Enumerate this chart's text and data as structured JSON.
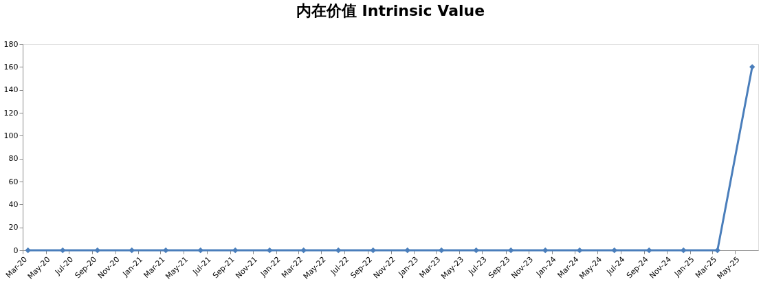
{
  "chart_data": {
    "type": "line",
    "title": "内在价值 Intrinsic Value",
    "x": [
      "2020-03-15",
      "2020-06-15",
      "2020-09-15",
      "2020-12-15",
      "2021-03-15",
      "2021-06-15",
      "2021-09-15",
      "2021-12-15",
      "2022-03-15",
      "2022-06-15",
      "2022-09-15",
      "2022-12-15",
      "2023-03-15",
      "2023-06-15",
      "2023-09-15",
      "2023-12-15",
      "2024-03-15",
      "2024-06-15",
      "2024-09-15",
      "2024-12-15",
      "2025-03-15",
      "2025-06-15"
    ],
    "series": [
      {
        "color": "#4a7ebb",
        "values": [
          0,
          0,
          0,
          0,
          0,
          0,
          0,
          0,
          0,
          0,
          0,
          0,
          0,
          0,
          0,
          0,
          0,
          0,
          0,
          0,
          0,
          160
        ]
      }
    ],
    "xlim": [
      "2020-03-01",
      "2025-07-01"
    ],
    "xticks": [
      {
        "value": "2020-03-01",
        "label": "Mar-20"
      },
      {
        "value": "2020-05-01",
        "label": "May-20"
      },
      {
        "value": "2020-07-01",
        "label": "Jul-20"
      },
      {
        "value": "2020-09-01",
        "label": "Sep-20"
      },
      {
        "value": "2020-11-01",
        "label": "Nov-20"
      },
      {
        "value": "2021-01-01",
        "label": "Jan-21"
      },
      {
        "value": "2021-03-01",
        "label": "Mar-21"
      },
      {
        "value": "2021-05-01",
        "label": "May-21"
      },
      {
        "value": "2021-07-01",
        "label": "Jul-21"
      },
      {
        "value": "2021-09-01",
        "label": "Sep-21"
      },
      {
        "value": "2021-11-01",
        "label": "Nov-21"
      },
      {
        "value": "2022-01-01",
        "label": "Jan-22"
      },
      {
        "value": "2022-03-01",
        "label": "Mar-22"
      },
      {
        "value": "2022-05-01",
        "label": "May-22"
      },
      {
        "value": "2022-07-01",
        "label": "Jul-22"
      },
      {
        "value": "2022-09-01",
        "label": "Sep-22"
      },
      {
        "value": "2022-11-01",
        "label": "Nov-22"
      },
      {
        "value": "2023-01-01",
        "label": "Jan-23"
      },
      {
        "value": "2023-03-01",
        "label": "Mar-23"
      },
      {
        "value": "2023-05-01",
        "label": "May-23"
      },
      {
        "value": "2023-07-01",
        "label": "Jul-23"
      },
      {
        "value": "2023-09-01",
        "label": "Sep-23"
      },
      {
        "value": "2023-11-01",
        "label": "Nov-23"
      },
      {
        "value": "2024-01-01",
        "label": "Jan-24"
      },
      {
        "value": "2024-03-01",
        "label": "Mar-24"
      },
      {
        "value": "2024-05-01",
        "label": "May-24"
      },
      {
        "value": "2024-07-01",
        "label": "Jul-24"
      },
      {
        "value": "2024-09-01",
        "label": "Sep-24"
      },
      {
        "value": "2024-11-01",
        "label": "Nov-24"
      },
      {
        "value": "2025-01-01",
        "label": "Jan-25"
      },
      {
        "value": "2025-03-01",
        "label": "Mar-25"
      },
      {
        "value": "2025-05-01",
        "label": "May-25"
      }
    ],
    "ylim": [
      0,
      180
    ],
    "yticks": [
      0,
      20,
      40,
      60,
      80,
      100,
      120,
      140,
      160,
      180
    ],
    "marker": "diamond",
    "line_style": "solid",
    "grid": false
  }
}
